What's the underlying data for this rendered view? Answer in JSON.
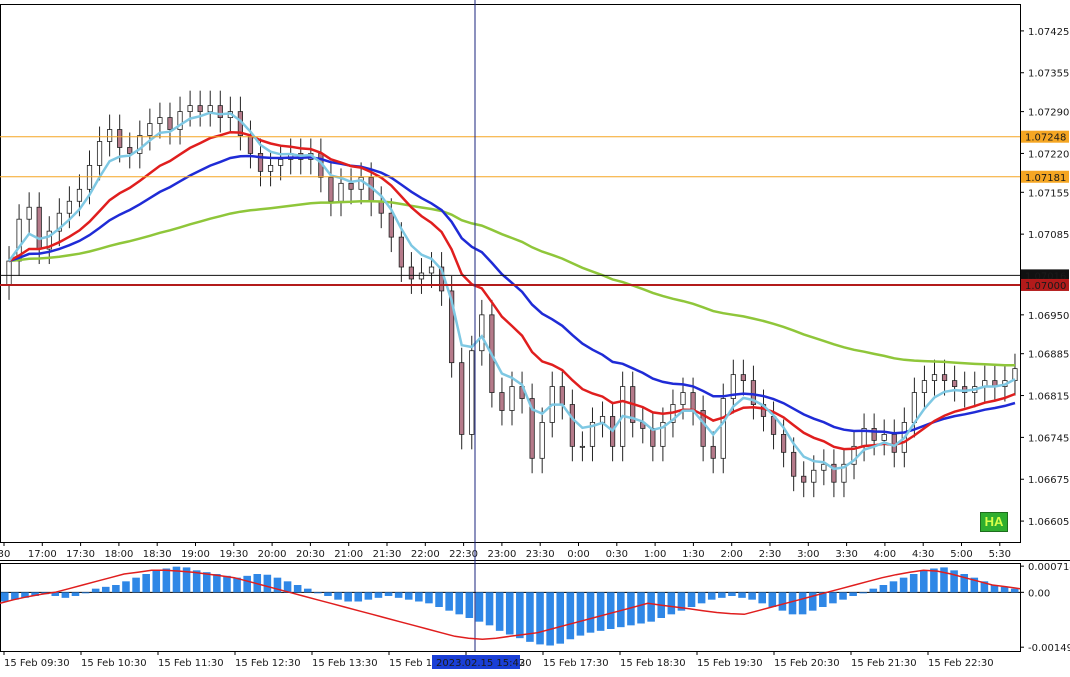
{
  "chart_data": [
    {
      "type": "candlestick",
      "indicator_badge": "HA",
      "y_ticks": [
        "1.07425",
        "1.07355",
        "1.07290",
        "1.07220",
        "1.07155",
        "1.07085",
        "1.06950",
        "1.06885",
        "1.06815",
        "1.06745",
        "1.06675",
        "1.06605"
      ],
      "ylim": [
        1.0657,
        1.0747
      ],
      "x_ticks": [
        "30",
        "17:00",
        "17:30",
        "18:00",
        "18:30",
        "19:00",
        "19:30",
        "20:00",
        "20:30",
        "21:00",
        "21:30",
        "22:00",
        "22:30",
        "23:00",
        "23:30",
        "0:00",
        "0:30",
        "1:00",
        "1:30",
        "2:00",
        "2:30",
        "3:00",
        "3:30",
        "4:00",
        "4:30",
        "5:00",
        "5:30"
      ],
      "levels": [
        {
          "value": 1.07248,
          "label": "1.07248",
          "color": "#f5a623"
        },
        {
          "value": 1.07181,
          "label": "1.07181",
          "color": "#f5a623"
        },
        {
          "value": 1.07016,
          "label": "1.07016",
          "color": "#111111"
        },
        {
          "value": 1.07,
          "label": "1.07000",
          "color": "#b31b1b"
        }
      ],
      "moving_averages": [
        {
          "color": "#8fc63a"
        },
        {
          "color": "#1f2bd6"
        },
        {
          "color": "#e01e1e"
        },
        {
          "color": "#7ec8e3"
        }
      ],
      "close": [
        1.0704,
        1.0711,
        1.0713,
        1.0706,
        1.0709,
        1.0712,
        1.0714,
        1.0716,
        1.072,
        1.0724,
        1.0726,
        1.0723,
        1.0722,
        1.0725,
        1.0727,
        1.0728,
        1.0726,
        1.0729,
        1.073,
        1.0729,
        1.073,
        1.0728,
        1.0729,
        1.0725,
        1.0722,
        1.0719,
        1.072,
        1.0721,
        1.0722,
        1.0721,
        1.0722,
        1.0718,
        1.0714,
        1.0717,
        1.0716,
        1.0718,
        1.0714,
        1.0712,
        1.0708,
        1.0703,
        1.0701,
        1.0702,
        1.0703,
        1.0699,
        1.0687,
        1.0675,
        1.0689,
        1.0695,
        1.0682,
        1.0679,
        1.0683,
        1.0681,
        1.0671,
        1.0677,
        1.0683,
        1.068,
        1.0673,
        1.0673,
        1.0677,
        1.0678,
        1.0673,
        1.0683,
        1.0677,
        1.0676,
        1.0673,
        1.0677,
        1.068,
        1.0682,
        1.0679,
        1.0673,
        1.0671,
        1.0681,
        1.0685,
        1.0684,
        1.068,
        1.0678,
        1.0675,
        1.0672,
        1.0668,
        1.0667,
        1.0669,
        1.067,
        1.0667,
        1.067,
        1.0673,
        1.0676,
        1.0674,
        1.0675,
        1.0672,
        1.0677,
        1.0682,
        1.0684,
        1.0685,
        1.0684,
        1.0683,
        1.0682,
        1.0683,
        1.0684,
        1.0683,
        1.0684,
        1.0686
      ]
    },
    {
      "type": "histogram",
      "name": "MACD",
      "y_ticks": [
        "0.000714",
        "0.00",
        "-0.001496"
      ],
      "ylim": [
        -0.0016,
        0.0008
      ],
      "x_ticks": [
        "15 Feb 09:30",
        "15 Feb 10:30",
        "15 Feb 11:30",
        "15 Feb 12:30",
        "15 Feb 13:30",
        "15 Feb 14",
        "15 Feb 16:30",
        "15 Feb 17:30",
        "15 Feb 18:30",
        "15 Feb 19:30",
        "15 Feb 20:30",
        "15 Feb 21:30",
        "15 Feb 22:30"
      ],
      "crosshair_time": "2023.02.15 15:42",
      "bar_color": "#2f87e6",
      "signal_color": "#e01e1e",
      "values": [
        -0.00025,
        -0.0002,
        -0.00015,
        -0.0001,
        -5e-05,
        -0.0001,
        -0.00015,
        -0.0001,
        0.0,
        0.0001,
        0.00015,
        0.0002,
        0.0003,
        0.0004,
        0.0005,
        0.0006,
        0.00065,
        0.0007,
        0.00068,
        0.0006,
        0.00055,
        0.0005,
        0.00045,
        0.0004,
        0.00045,
        0.0005,
        0.00048,
        0.0004,
        0.0003,
        0.0002,
        0.0001,
        0.0,
        -0.0001,
        -0.0002,
        -0.00025,
        -0.00025,
        -0.0002,
        -0.00015,
        -0.0001,
        -0.00015,
        -0.0002,
        -0.00025,
        -0.0003,
        -0.0004,
        -0.0005,
        -0.0006,
        -0.0007,
        -0.0008,
        -0.0009,
        -0.00105,
        -0.00115,
        -0.00125,
        -0.00135,
        -0.00142,
        -0.00145,
        -0.0014,
        -0.00128,
        -0.00118,
        -0.0011,
        -0.00105,
        -0.001,
        -0.00095,
        -0.0009,
        -0.00085,
        -0.0008,
        -0.0007,
        -0.0006,
        -0.0005,
        -0.0004,
        -0.0003,
        -0.0002,
        -0.00015,
        -0.0001,
        -0.00015,
        -0.0002,
        -0.0003,
        -0.0004,
        -0.0005,
        -0.0006,
        -0.0006,
        -0.0005,
        -0.0004,
        -0.0003,
        -0.0002,
        -0.0001,
        0.0,
        0.0001,
        0.0002,
        0.0003,
        0.0004,
        0.0005,
        0.0006,
        0.00065,
        0.00068,
        0.0006,
        0.0005,
        0.0004,
        0.0003,
        0.0002,
        0.00015,
        0.0001
      ],
      "signal": [
        -0.0003,
        -0.0002,
        -0.00012,
        -5e-05,
        0.0,
        0.0001,
        0.0002,
        0.0003,
        0.0004,
        0.0005,
        0.00055,
        0.0006,
        0.0006,
        0.00058,
        0.00055,
        0.0005,
        0.00045,
        0.0004,
        0.0003,
        0.0002,
        0.0001,
        0.0,
        -0.0001,
        -0.0002,
        -0.0003,
        -0.0004,
        -0.0005,
        -0.0006,
        -0.0007,
        -0.0008,
        -0.0009,
        -0.001,
        -0.0011,
        -0.0012,
        -0.00125,
        -0.00128,
        -0.00125,
        -0.0012,
        -0.00115,
        -0.0011,
        -0.001,
        -0.0009,
        -0.0008,
        -0.0007,
        -0.0006,
        -0.0005,
        -0.0004,
        -0.0003,
        -0.00035,
        -0.0004,
        -0.00045,
        -0.0005,
        -0.00055,
        -0.00058,
        -0.0006,
        -0.0005,
        -0.0004,
        -0.0003,
        -0.0002,
        -0.0001,
        0.0,
        0.0001,
        0.0002,
        0.0003,
        0.0004,
        0.00048,
        0.00055,
        0.0006,
        0.00058,
        0.0005,
        0.0004,
        0.0003,
        0.0002,
        0.00015,
        0.0001
      ]
    }
  ]
}
